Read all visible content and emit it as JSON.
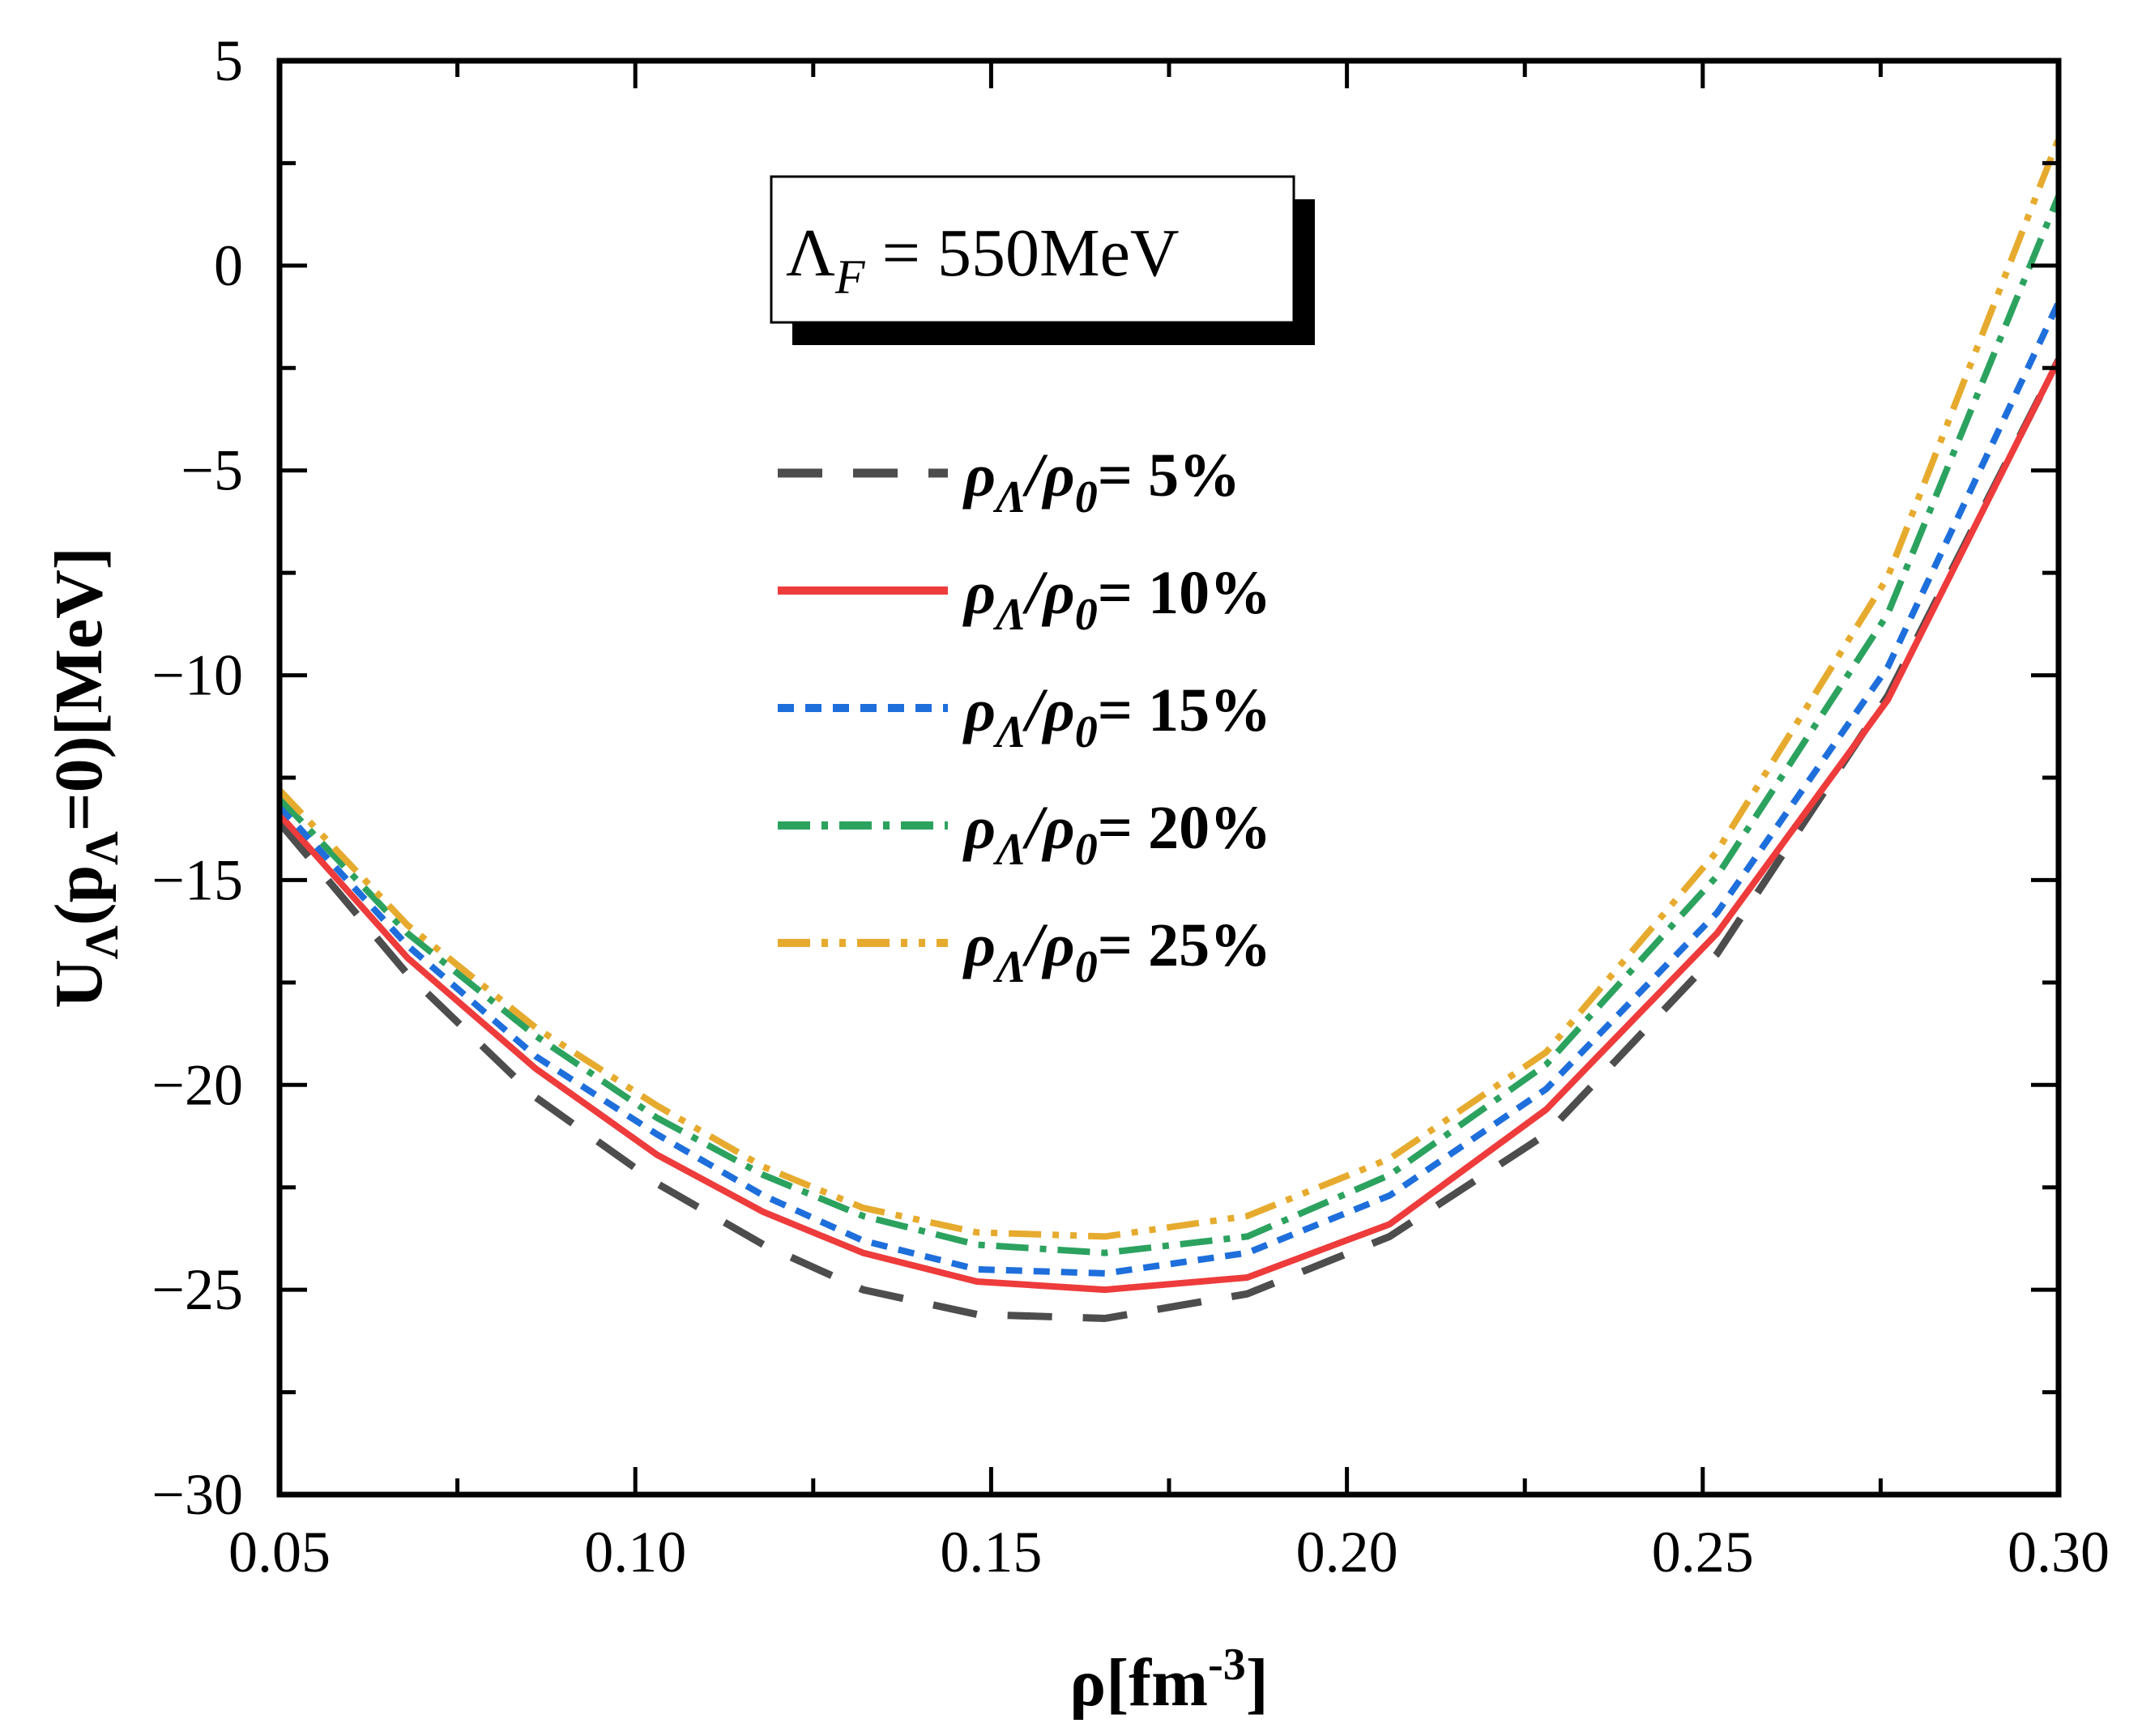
{
  "chart_data": {
    "type": "line",
    "xlabel": "ρ[fm",
    "xlabel_sup": "-3",
    "xlabel_end": "]",
    "ylabel": "U",
    "ylabel_sub1": "Λ",
    "ylabel_mid": "(p",
    "ylabel_sub2": "Λ",
    "ylabel_end": "=0)[MeV]",
    "annotation": {
      "symbol": "Λ",
      "sub": "F",
      "text": " = 550MeV"
    },
    "xlim": [
      0.05,
      0.3
    ],
    "ylim": [
      -30,
      5
    ],
    "xticks": [
      "0.05",
      "0.10",
      "0.15",
      "0.20",
      "0.25",
      "0.30"
    ],
    "xtick_values": [
      0.05,
      0.1,
      0.15,
      0.2,
      0.25,
      0.3
    ],
    "yticks": [
      "−30",
      "−25",
      "−20",
      "−15",
      "−10",
      "−5",
      "0",
      "5"
    ],
    "ytick_values": [
      -30,
      -25,
      -20,
      -15,
      -10,
      -5,
      0,
      5
    ],
    "legend_placement": "center-left",
    "series": [
      {
        "name_prefix": "ρ",
        "name_sub1": "Λ",
        "name_mid": "/ρ",
        "name_sub2": "0",
        "name_end": "= 5%",
        "color": "#4d4d4d",
        "dash": "55,38",
        "width": 9,
        "x": [
          0.05,
          0.068,
          0.086,
          0.103,
          0.118,
          0.132,
          0.148,
          0.166,
          0.186,
          0.206,
          0.228,
          0.252,
          0.276,
          0.3
        ],
        "y": [
          -13.6,
          -17.3,
          -20.3,
          -22.4,
          -23.9,
          -25.0,
          -25.6,
          -25.7,
          -25.1,
          -23.7,
          -21.2,
          -16.8,
          -10.5,
          -2.3
        ]
      },
      {
        "name_prefix": "ρ",
        "name_sub1": "Λ",
        "name_mid": "/ρ",
        "name_sub2": "0",
        "name_end": "= 10%",
        "color": "#ee3b3b",
        "dash": "",
        "width": 8,
        "x": [
          0.05,
          0.068,
          0.086,
          0.103,
          0.118,
          0.132,
          0.148,
          0.166,
          0.186,
          0.206,
          0.228,
          0.252,
          0.276,
          0.3
        ],
        "y": [
          -13.4,
          -16.9,
          -19.6,
          -21.7,
          -23.1,
          -24.1,
          -24.8,
          -25.0,
          -24.7,
          -23.4,
          -20.6,
          -16.3,
          -10.6,
          -2.3
        ]
      },
      {
        "name_prefix": "ρ",
        "name_sub1": "Λ",
        "name_mid": "/ρ",
        "name_sub2": "0",
        "name_end": "= 15%",
        "color": "#1e6fdc",
        "dash": "20,14",
        "width": 8,
        "x": [
          0.05,
          0.068,
          0.086,
          0.103,
          0.118,
          0.132,
          0.148,
          0.166,
          0.186,
          0.206,
          0.228,
          0.252,
          0.276,
          0.3
        ],
        "y": [
          -13.2,
          -16.6,
          -19.3,
          -21.2,
          -22.7,
          -23.8,
          -24.5,
          -24.6,
          -24.1,
          -22.7,
          -20.1,
          -15.8,
          -9.8,
          -0.9
        ]
      },
      {
        "name_prefix": "ρ",
        "name_sub1": "Λ",
        "name_mid": "/ρ",
        "name_sub2": "0",
        "name_end": "= 20%",
        "color": "#2ca25f",
        "dash": "40,14,8,14",
        "width": 8,
        "x": [
          0.05,
          0.068,
          0.086,
          0.103,
          0.118,
          0.132,
          0.148,
          0.166,
          0.186,
          0.206,
          0.228,
          0.252,
          0.276,
          0.3
        ],
        "y": [
          -13.0,
          -16.3,
          -18.8,
          -20.8,
          -22.2,
          -23.2,
          -23.9,
          -24.1,
          -23.7,
          -22.2,
          -19.5,
          -14.9,
          -8.5,
          1.7
        ]
      },
      {
        "name_prefix": "ρ",
        "name_sub1": "Λ",
        "name_mid": "/ρ",
        "name_sub2": "0",
        "name_end": "= 25%",
        "color": "#e6ab2e",
        "dash": "40,14,8,14,8,14",
        "width": 8,
        "x": [
          0.05,
          0.068,
          0.086,
          0.103,
          0.118,
          0.132,
          0.148,
          0.166,
          0.186,
          0.206,
          0.228,
          0.252,
          0.276,
          0.3
        ],
        "y": [
          -12.8,
          -16.1,
          -18.6,
          -20.5,
          -22.0,
          -23.0,
          -23.6,
          -23.7,
          -23.2,
          -21.8,
          -19.2,
          -14.3,
          -7.6,
          3.1
        ]
      }
    ]
  }
}
